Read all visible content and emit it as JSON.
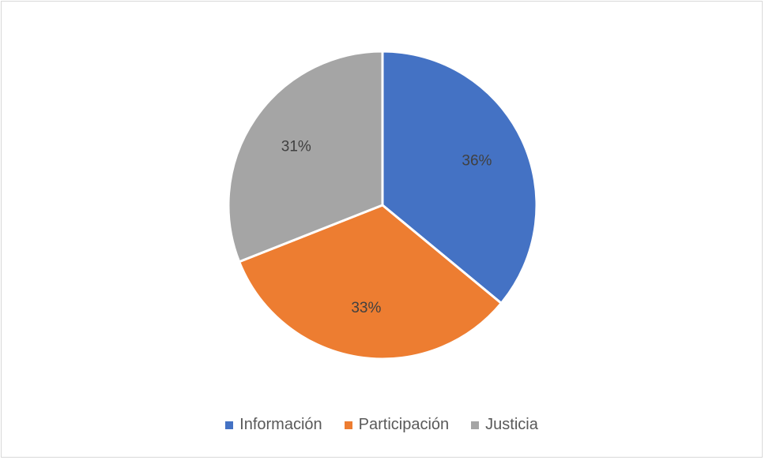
{
  "chart_data": {
    "type": "pie",
    "title": "",
    "slices": [
      {
        "name": "Información",
        "value": 36,
        "label": "36%",
        "color": "#4472C4"
      },
      {
        "name": "Participación",
        "value": 33,
        "label": "33%",
        "color": "#ED7D31"
      },
      {
        "name": "Justicia",
        "value": 31,
        "label": "31%",
        "color": "#A5A5A5"
      }
    ],
    "legend_position": "bottom",
    "start_angle_deg": 0,
    "direction": "clockwise"
  }
}
